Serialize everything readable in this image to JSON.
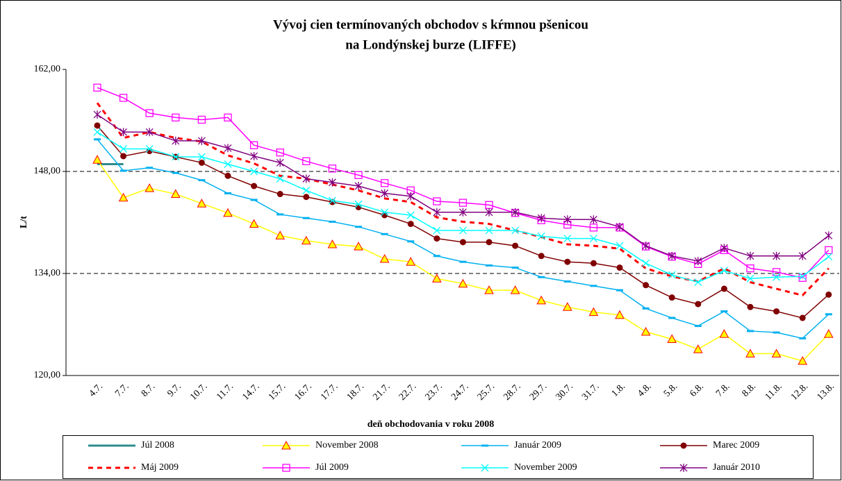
{
  "chart_data": {
    "type": "line",
    "title": [
      "Vývoj cien termínovaných obchodov s kŕmnou pšenicou",
      "na Londýnskej burze (LIFFE)"
    ],
    "x_label": "deň obchodovania v roku 2008",
    "y_label": "L/t",
    "categories": [
      "4.7.",
      "7.7.",
      "8.7.",
      "9.7.",
      "10.7.",
      "11.7.",
      "14.7.",
      "15.7.",
      "16.7.",
      "17.7.",
      "18.7.",
      "21.7.",
      "22.7.",
      "23.7.",
      "24.7.",
      "25.7.",
      "28.7.",
      "29.7.",
      "30.7.",
      "31.7.",
      "1.8.",
      "4.8.",
      "5.8.",
      "6.8.",
      "7.8.",
      "8.8.",
      "11.8.",
      "12.8.",
      "13.8."
    ],
    "ylim": [
      120,
      162
    ],
    "yticks": [
      {
        "value": 120,
        "label": "120,00"
      },
      {
        "value": 134,
        "label": "134,00"
      },
      {
        "value": 148,
        "label": "148,00"
      },
      {
        "value": 162,
        "label": "162,00"
      }
    ],
    "grid": true,
    "series": [
      {
        "name": "Júl 2008",
        "color": "#2e8b8b",
        "marker": "none",
        "dash": false,
        "values": [
          149,
          149,
          null,
          null,
          null,
          null,
          null,
          null,
          null,
          null,
          null,
          null,
          null,
          null,
          null,
          null,
          null,
          null,
          null,
          null,
          null,
          null,
          null,
          null,
          null,
          null,
          null,
          null,
          null
        ]
      },
      {
        "name": "November 2008",
        "color": "#ffff00",
        "marker": "triangle",
        "dash": false,
        "values": [
          149.6,
          144.4,
          145.7,
          144.9,
          143.6,
          142.3,
          140.8,
          139.2,
          138.5,
          138.0,
          137.7,
          136.0,
          135.6,
          133.3,
          132.6,
          131.7,
          131.7,
          130.3,
          129.4,
          128.7,
          128.3,
          126.0,
          125.0,
          123.6,
          125.7,
          123.0,
          123.0,
          122.0,
          125.7
        ]
      },
      {
        "name": "Január 2009",
        "color": "#00b0f0",
        "marker": "dash",
        "dash": false,
        "values": [
          152.4,
          148.1,
          148.5,
          147.8,
          146.8,
          145.0,
          144.1,
          142.1,
          141.6,
          141.1,
          140.4,
          139.4,
          138.4,
          136.4,
          135.6,
          135.1,
          134.8,
          133.5,
          132.9,
          132.3,
          131.7,
          129.2,
          127.9,
          126.8,
          128.8,
          126.1,
          125.9,
          125.1,
          128.4
        ]
      },
      {
        "name": "Marec 2009",
        "color": "#800000",
        "marker": "circle",
        "dash": false,
        "values": [
          154.3,
          150.1,
          150.8,
          150.0,
          149.2,
          147.4,
          146.0,
          144.9,
          144.5,
          143.8,
          143.1,
          142.0,
          140.8,
          138.8,
          138.3,
          138.3,
          137.8,
          136.4,
          135.6,
          135.4,
          134.8,
          132.4,
          130.7,
          129.8,
          131.9,
          129.4,
          128.8,
          127.9,
          131.1
        ]
      },
      {
        "name": "Máj 2009",
        "color": "#ff0000",
        "marker": "none",
        "dash": true,
        "values": [
          157.4,
          152.6,
          153.4,
          152.6,
          152.1,
          150.2,
          149.1,
          147.4,
          147.0,
          146.2,
          145.4,
          144.3,
          143.8,
          141.7,
          141.1,
          140.8,
          139.9,
          139.0,
          138.0,
          137.8,
          137.4,
          134.7,
          133.6,
          132.9,
          134.7,
          132.8,
          131.9,
          131.0,
          134.7
        ]
      },
      {
        "name": "Júl 2009",
        "color": "#ff00ff",
        "marker": "square",
        "dash": false,
        "values": [
          159.5,
          158.1,
          156.0,
          155.4,
          155.1,
          155.4,
          151.6,
          150.6,
          149.4,
          148.4,
          147.5,
          146.4,
          145.4,
          143.9,
          143.7,
          143.4,
          142.3,
          141.3,
          140.7,
          140.3,
          140.3,
          137.7,
          136.3,
          135.3,
          137.2,
          134.7,
          134.2,
          133.4,
          137.2
        ]
      },
      {
        "name": "November 2009",
        "color": "#00ffff",
        "marker": "x",
        "dash": false,
        "values": [
          153.4,
          151.1,
          151.1,
          150.0,
          150.0,
          149.0,
          148.0,
          147.0,
          145.4,
          144.0,
          143.5,
          142.4,
          142.0,
          139.9,
          139.9,
          139.9,
          139.9,
          139.1,
          138.8,
          138.8,
          137.8,
          135.4,
          133.8,
          132.8,
          134.4,
          133.3,
          133.5,
          133.6,
          136.3
        ]
      },
      {
        "name": "Január 2010",
        "color": "#800080",
        "marker": "star",
        "dash": false,
        "values": [
          155.8,
          153.4,
          153.4,
          152.2,
          152.2,
          151.2,
          150.1,
          149.2,
          147.0,
          146.5,
          146.0,
          145.0,
          144.6,
          142.4,
          142.4,
          142.4,
          142.4,
          141.6,
          141.4,
          141.4,
          140.4,
          137.8,
          136.4,
          135.7,
          137.5,
          136.4,
          136.4,
          136.4,
          139.2
        ]
      }
    ]
  }
}
